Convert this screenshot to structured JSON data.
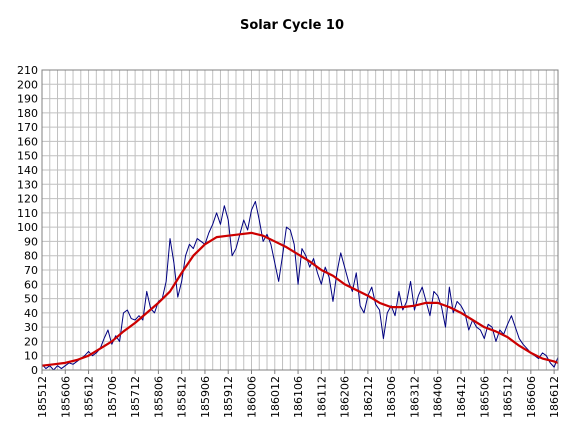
{
  "chart_data": {
    "type": "line",
    "title": "Solar Cycle 10",
    "xlabel": "",
    "ylabel": "",
    "ylim": [
      0,
      210
    ],
    "y_ticks": [
      0,
      10,
      20,
      30,
      40,
      50,
      60,
      70,
      80,
      90,
      100,
      110,
      120,
      130,
      140,
      150,
      160,
      170,
      180,
      190,
      200,
      210
    ],
    "x_tick_labels": [
      "185512",
      "185606",
      "185612",
      "185706",
      "185712",
      "185806",
      "185812",
      "185906",
      "185912",
      "186006",
      "186012",
      "186106",
      "186112",
      "186206",
      "186212",
      "186306",
      "186312",
      "186406",
      "186412",
      "186506",
      "186512",
      "186606",
      "186612"
    ],
    "grid": true,
    "legend": "none",
    "x_start": "185512",
    "x_end": "186701",
    "series": [
      {
        "color": "#000080",
        "kind": "monthly",
        "points": [
          [
            "185512",
            4
          ],
          [
            "185601",
            1
          ],
          [
            "185602",
            3
          ],
          [
            "185603",
            0
          ],
          [
            "185604",
            3
          ],
          [
            "185605",
            1
          ],
          [
            "185606",
            3
          ],
          [
            "185607",
            5
          ],
          [
            "185608",
            4
          ],
          [
            "185609",
            6
          ],
          [
            "185610",
            8
          ],
          [
            "185611",
            10
          ],
          [
            "185612",
            13
          ],
          [
            "185701",
            10
          ],
          [
            "185702",
            12
          ],
          [
            "185703",
            15
          ],
          [
            "185704",
            22
          ],
          [
            "185705",
            28
          ],
          [
            "185706",
            18
          ],
          [
            "185707",
            24
          ],
          [
            "185708",
            20
          ],
          [
            "185709",
            40
          ],
          [
            "185710",
            42
          ],
          [
            "185711",
            36
          ],
          [
            "185712",
            35
          ],
          [
            "185801",
            38
          ],
          [
            "185802",
            35
          ],
          [
            "185803",
            55
          ],
          [
            "185804",
            43
          ],
          [
            "185805",
            40
          ],
          [
            "185806",
            48
          ],
          [
            "185807",
            50
          ],
          [
            "185808",
            62
          ],
          [
            "185809",
            92
          ],
          [
            "185810",
            75
          ],
          [
            "185811",
            51
          ],
          [
            "185812",
            62
          ],
          [
            "185901",
            80
          ],
          [
            "185902",
            88
          ],
          [
            "185903",
            85
          ],
          [
            "185904",
            92
          ],
          [
            "185905",
            90
          ],
          [
            "185906",
            88
          ],
          [
            "185907",
            96
          ],
          [
            "185908",
            102
          ],
          [
            "185909",
            110
          ],
          [
            "185910",
            102
          ],
          [
            "185911",
            115
          ],
          [
            "185912",
            105
          ],
          [
            "186001",
            80
          ],
          [
            "186002",
            85
          ],
          [
            "186003",
            95
          ],
          [
            "186004",
            105
          ],
          [
            "186005",
            98
          ],
          [
            "186006",
            112
          ],
          [
            "186007",
            118
          ],
          [
            "186008",
            105
          ],
          [
            "186009",
            90
          ],
          [
            "186010",
            95
          ],
          [
            "186011",
            88
          ],
          [
            "186012",
            75
          ],
          [
            "186101",
            62
          ],
          [
            "186102",
            80
          ],
          [
            "186103",
            100
          ],
          [
            "186104",
            98
          ],
          [
            "186105",
            88
          ],
          [
            "186106",
            60
          ],
          [
            "186107",
            85
          ],
          [
            "186108",
            80
          ],
          [
            "186109",
            72
          ],
          [
            "186110",
            78
          ],
          [
            "186111",
            68
          ],
          [
            "186112",
            60
          ],
          [
            "186201",
            72
          ],
          [
            "186202",
            65
          ],
          [
            "186203",
            48
          ],
          [
            "186204",
            68
          ],
          [
            "186205",
            82
          ],
          [
            "186206",
            72
          ],
          [
            "186207",
            62
          ],
          [
            "186208",
            55
          ],
          [
            "186209",
            68
          ],
          [
            "186210",
            45
          ],
          [
            "186211",
            40
          ],
          [
            "186212",
            52
          ],
          [
            "186301",
            58
          ],
          [
            "186302",
            46
          ],
          [
            "186303",
            42
          ],
          [
            "186304",
            22
          ],
          [
            "186305",
            40
          ],
          [
            "186306",
            45
          ],
          [
            "186307",
            38
          ],
          [
            "186308",
            55
          ],
          [
            "186309",
            42
          ],
          [
            "186310",
            48
          ],
          [
            "186311",
            62
          ],
          [
            "186312",
            42
          ],
          [
            "186401",
            52
          ],
          [
            "186402",
            58
          ],
          [
            "186403",
            48
          ],
          [
            "186404",
            38
          ],
          [
            "186405",
            55
          ],
          [
            "186406",
            52
          ],
          [
            "186407",
            44
          ],
          [
            "186408",
            30
          ],
          [
            "186409",
            58
          ],
          [
            "186410",
            40
          ],
          [
            "186411",
            48
          ],
          [
            "186412",
            45
          ],
          [
            "186501",
            40
          ],
          [
            "186502",
            28
          ],
          [
            "186503",
            35
          ],
          [
            "186504",
            30
          ],
          [
            "186505",
            28
          ],
          [
            "186506",
            22
          ],
          [
            "186507",
            32
          ],
          [
            "186508",
            30
          ],
          [
            "186509",
            20
          ],
          [
            "186510",
            28
          ],
          [
            "186511",
            25
          ],
          [
            "186512",
            32
          ],
          [
            "186601",
            38
          ],
          [
            "186602",
            30
          ],
          [
            "186603",
            22
          ],
          [
            "186604",
            18
          ],
          [
            "186605",
            15
          ],
          [
            "186606",
            12
          ],
          [
            "186607",
            10
          ],
          [
            "186608",
            8
          ],
          [
            "186609",
            12
          ],
          [
            "186610",
            10
          ],
          [
            "186611",
            5
          ],
          [
            "186612",
            2
          ],
          [
            "186701",
            9
          ]
        ]
      },
      {
        "color": "#cc0000",
        "kind": "smoothed",
        "points": [
          [
            "185512",
            3
          ],
          [
            "185603",
            4
          ],
          [
            "185606",
            5
          ],
          [
            "185609",
            7
          ],
          [
            "185612",
            10
          ],
          [
            "185703",
            15
          ],
          [
            "185706",
            20
          ],
          [
            "185709",
            27
          ],
          [
            "185712",
            33
          ],
          [
            "185803",
            40
          ],
          [
            "185806",
            47
          ],
          [
            "185809",
            55
          ],
          [
            "185812",
            68
          ],
          [
            "185903",
            80
          ],
          [
            "185906",
            88
          ],
          [
            "185909",
            93
          ],
          [
            "185912",
            94
          ],
          [
            "186003",
            95
          ],
          [
            "186006",
            96
          ],
          [
            "186009",
            94
          ],
          [
            "186012",
            90
          ],
          [
            "186103",
            86
          ],
          [
            "186106",
            81
          ],
          [
            "186109",
            76
          ],
          [
            "186112",
            70
          ],
          [
            "186203",
            66
          ],
          [
            "186206",
            60
          ],
          [
            "186209",
            56
          ],
          [
            "186212",
            52
          ],
          [
            "186303",
            47
          ],
          [
            "186306",
            44
          ],
          [
            "186309",
            44
          ],
          [
            "186312",
            45
          ],
          [
            "186403",
            47
          ],
          [
            "186406",
            47
          ],
          [
            "186409",
            44
          ],
          [
            "186412",
            40
          ],
          [
            "186503",
            35
          ],
          [
            "186506",
            30
          ],
          [
            "186509",
            27
          ],
          [
            "186512",
            23
          ],
          [
            "186603",
            17
          ],
          [
            "186606",
            12
          ],
          [
            "186609",
            8
          ],
          [
            "186612",
            6
          ],
          [
            "186701",
            5
          ]
        ]
      }
    ]
  }
}
